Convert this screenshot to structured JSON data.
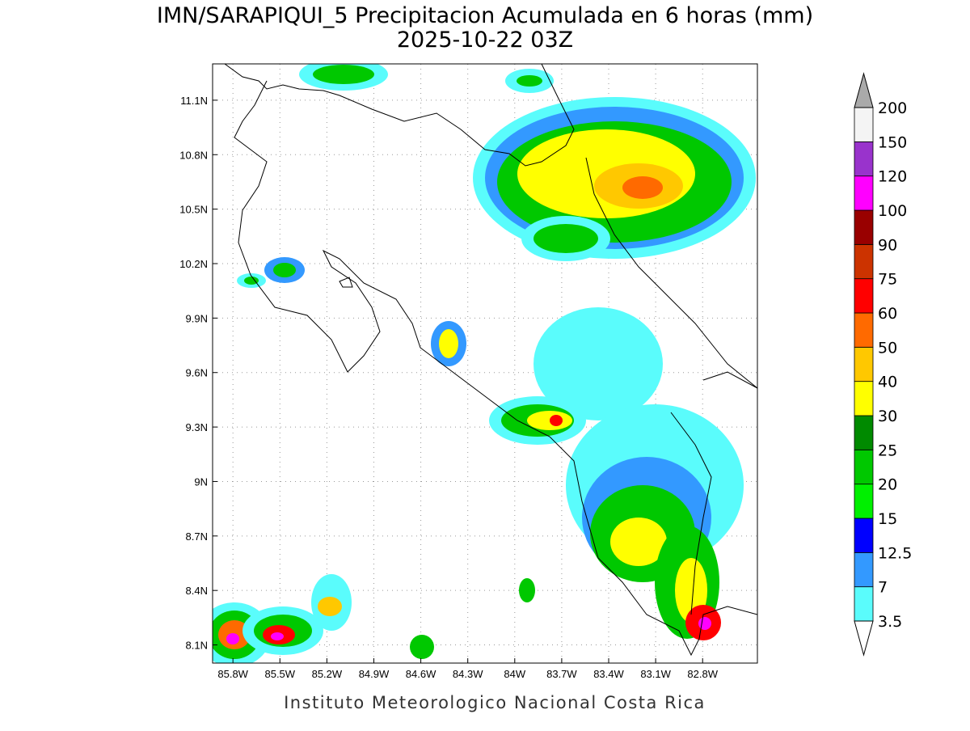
{
  "map": {
    "title": "IMN/SARAPIQUI_5 Precipitacion Acumulada en 6 horas (mm)",
    "subtitle": "2025-10-22 03Z",
    "credit": "Instituto Meteorologico Nacional Costa Rica",
    "lonlim": [
      -85.93,
      -82.45
    ],
    "latlim": [
      8.0,
      11.3
    ],
    "lon_ticks": [
      {
        "value": -85.8,
        "label": "85.8W"
      },
      {
        "value": -85.5,
        "label": "85.5W"
      },
      {
        "value": -85.2,
        "label": "85.2W"
      },
      {
        "value": -84.9,
        "label": "84.9W"
      },
      {
        "value": -84.6,
        "label": "84.6W"
      },
      {
        "value": -84.3,
        "label": "84.3W"
      },
      {
        "value": -84.0,
        "label": "84W"
      },
      {
        "value": -83.7,
        "label": "83.7W"
      },
      {
        "value": -83.4,
        "label": "83.4W"
      },
      {
        "value": -83.1,
        "label": "83.1W"
      },
      {
        "value": -82.8,
        "label": "82.8W"
      }
    ],
    "lat_ticks": [
      {
        "value": 8.1,
        "label": "8.1N"
      },
      {
        "value": 8.4,
        "label": "8.4N"
      },
      {
        "value": 8.7,
        "label": "8.7N"
      },
      {
        "value": 9.0,
        "label": "9N"
      },
      {
        "value": 9.3,
        "label": "9.3N"
      },
      {
        "value": 9.6,
        "label": "9.6N"
      },
      {
        "value": 9.9,
        "label": "9.9N"
      },
      {
        "value": 10.2,
        "label": "10.2N"
      },
      {
        "value": 10.5,
        "label": "10.5N"
      },
      {
        "value": 10.8,
        "label": "10.8N"
      },
      {
        "value": 11.1,
        "label": "11.1N"
      }
    ],
    "grid": true,
    "colorbar": {
      "levels": [
        3.5,
        7,
        12.5,
        15,
        20,
        25,
        30,
        40,
        50,
        60,
        75,
        90,
        100,
        120,
        150,
        200
      ],
      "colors": [
        "#5afcfc",
        "#3399ff",
        "#0000ff",
        "#00f000",
        "#00c800",
        "#008a00",
        "#ffff00",
        "#ffc800",
        "#ff6a00",
        "#ff0000",
        "#cc3300",
        "#990000",
        "#ff00ff",
        "#9933cc",
        "#f4f4f4"
      ],
      "under_color": "#ffffff",
      "over_color": "#aaaaaa"
    }
  }
}
